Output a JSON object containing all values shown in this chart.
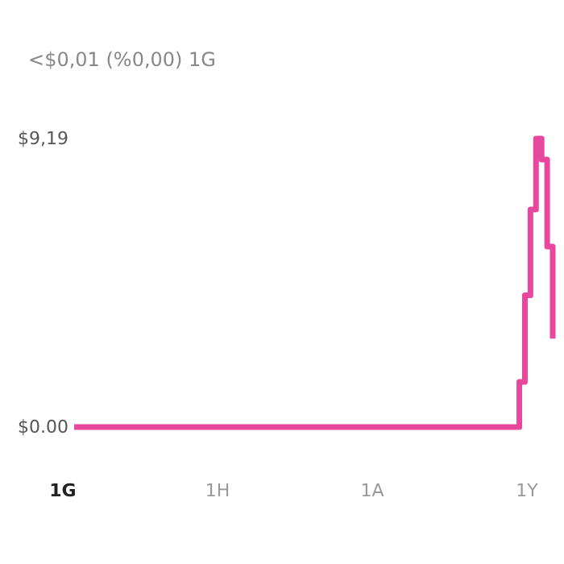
{
  "chart_data": {
    "type": "step",
    "title": "<$0,01 (%0,00) 1G",
    "categories": [
      null,
      null,
      null,
      null,
      null,
      null,
      null,
      null,
      null,
      null,
      null,
      null,
      null,
      null,
      null,
      null,
      null,
      null,
      null,
      null,
      null,
      null,
      null,
      null,
      null,
      null,
      null,
      null,
      null,
      null,
      null,
      null,
      null,
      null,
      null,
      null,
      null,
      null,
      null,
      null,
      null,
      null,
      null,
      null,
      null,
      null,
      null,
      null,
      null,
      null,
      null,
      null,
      null,
      null,
      null,
      null,
      null,
      null,
      null,
      null,
      null,
      null,
      null,
      null,
      null,
      null,
      null,
      null,
      null,
      null,
      null,
      null,
      null,
      null,
      null,
      null,
      null,
      null,
      null,
      null,
      null,
      null,
      null,
      null,
      null,
      null,
      null
    ],
    "series": [
      {
        "color": "#e8479e",
        "values": [
          0,
          0,
          0,
          0,
          0,
          0,
          0,
          0,
          0,
          0,
          0,
          0,
          0,
          0,
          0,
          0,
          0,
          0,
          0,
          0,
          0,
          0,
          0,
          0,
          0,
          0,
          0,
          0,
          0,
          0,
          0,
          0,
          0,
          0,
          0,
          0,
          0,
          0,
          0,
          0,
          0,
          0,
          0,
          0,
          0,
          0,
          0,
          0,
          0,
          0,
          0,
          0,
          0,
          0,
          0,
          0,
          0,
          0,
          0,
          0,
          0,
          0,
          0,
          0,
          0,
          0,
          0,
          0,
          0,
          0,
          0,
          0,
          0,
          0,
          0,
          0,
          0,
          0,
          0,
          0,
          1.44,
          4.2,
          6.93,
          9.19,
          8.52,
          5.75,
          2.82
        ]
      }
    ],
    "ylim": [
      0,
      9.19
    ],
    "yticks": [
      {
        "value": 0,
        "label": "$0.00"
      },
      {
        "value": 9.19,
        "label": "$9,19"
      }
    ],
    "tick_labels": "y",
    "annotations": [
      "1G",
      "1H",
      "1A",
      "1Y"
    ]
  }
}
